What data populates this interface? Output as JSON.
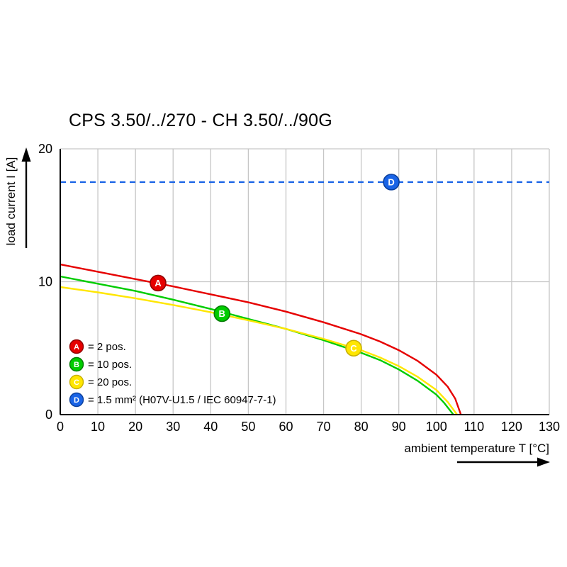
{
  "chart_data": {
    "type": "line",
    "title": "CPS 3.50/../270 - CH 3.50/../90G",
    "xlabel": "ambient temperature T [°C]",
    "ylabel": "load current I [A]",
    "xlim": [
      0,
      130
    ],
    "ylim": [
      0,
      20
    ],
    "x_ticks": [
      0,
      10,
      20,
      30,
      40,
      50,
      60,
      70,
      80,
      90,
      100,
      110,
      120,
      130
    ],
    "y_ticks": [
      0,
      10,
      20
    ],
    "grid": true,
    "grid_color": "#c6c6c6",
    "axis_color": "#000000",
    "legend_position": "inside-lower-left",
    "series": [
      {
        "id": "A",
        "name": "2 pos.",
        "legend_label": "= 2 pos.",
        "color": "#e60000",
        "marker_stroke": "#8f0000",
        "line_style": "solid",
        "marker_at": [
          26,
          9.9
        ],
        "points": [
          [
            0,
            11.3
          ],
          [
            10,
            10.75
          ],
          [
            20,
            10.2
          ],
          [
            30,
            9.65
          ],
          [
            40,
            9.05
          ],
          [
            50,
            8.45
          ],
          [
            60,
            7.75
          ],
          [
            70,
            6.95
          ],
          [
            80,
            6.05
          ],
          [
            85,
            5.5
          ],
          [
            90,
            4.85
          ],
          [
            95,
            4.05
          ],
          [
            100,
            3.0
          ],
          [
            103,
            2.1
          ],
          [
            105,
            1.2
          ],
          [
            106.5,
            0
          ]
        ]
      },
      {
        "id": "B",
        "name": "10 pos.",
        "legend_label": "= 10 pos.",
        "color": "#00cc00",
        "marker_stroke": "#007a00",
        "line_style": "solid",
        "marker_at": [
          43,
          7.6
        ],
        "points": [
          [
            0,
            10.4
          ],
          [
            10,
            9.85
          ],
          [
            20,
            9.3
          ],
          [
            30,
            8.65
          ],
          [
            40,
            7.95
          ],
          [
            50,
            7.2
          ],
          [
            60,
            6.45
          ],
          [
            70,
            5.6
          ],
          [
            80,
            4.65
          ],
          [
            85,
            4.1
          ],
          [
            90,
            3.4
          ],
          [
            95,
            2.55
          ],
          [
            100,
            1.5
          ],
          [
            102,
            0.9
          ],
          [
            104.5,
            0
          ]
        ]
      },
      {
        "id": "C",
        "name": "20 pos.",
        "legend_label": "= 20 pos.",
        "color": "#ffe600",
        "marker_stroke": "#c7b000",
        "line_style": "solid",
        "marker_at": [
          78,
          5.0
        ],
        "points": [
          [
            0,
            9.6
          ],
          [
            10,
            9.2
          ],
          [
            20,
            8.75
          ],
          [
            30,
            8.25
          ],
          [
            40,
            7.7
          ],
          [
            50,
            7.1
          ],
          [
            60,
            6.45
          ],
          [
            70,
            5.7
          ],
          [
            80,
            4.85
          ],
          [
            85,
            4.3
          ],
          [
            90,
            3.65
          ],
          [
            95,
            2.85
          ],
          [
            100,
            1.85
          ],
          [
            103,
            0.95
          ],
          [
            105.5,
            0
          ]
        ]
      },
      {
        "id": "D",
        "name": "1.5 mm² (H07V-U1.5 / IEC 60947-7-1)",
        "legend_label": "= 1.5 mm² (H07V-U1.5 / IEC 60947-7-1)",
        "color": "#1a64e6",
        "marker_stroke": "#0b3f9b",
        "line_style": "dashed",
        "marker_at": [
          88,
          17.5
        ],
        "points": [
          [
            0,
            17.5
          ],
          [
            130,
            17.5
          ]
        ]
      }
    ]
  }
}
